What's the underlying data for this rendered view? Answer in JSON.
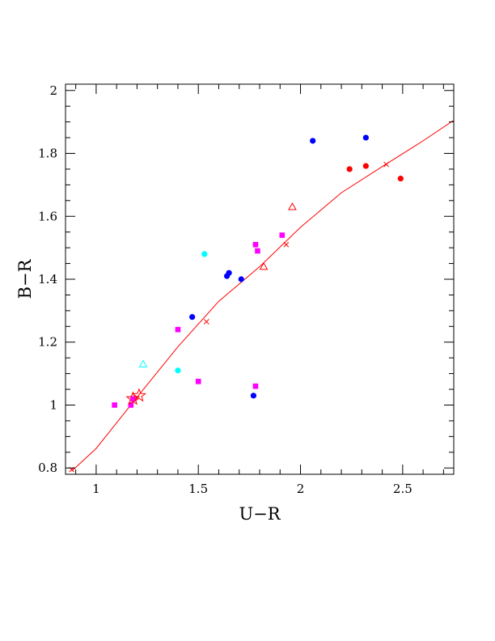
{
  "chart_data": {
    "type": "scatter",
    "title": "",
    "xlabel": "U−R",
    "ylabel": "B−R",
    "xlim": [
      0.85,
      2.75
    ],
    "ylim": [
      0.78,
      2.02
    ],
    "grid": false,
    "x_ticks": [
      1,
      1.5,
      2,
      2.5
    ],
    "x_tick_labels": [
      "1",
      "1.5",
      "2",
      "2.5"
    ],
    "y_ticks": [
      0.8,
      1,
      1.2,
      1.4,
      1.6,
      1.8,
      2
    ],
    "y_tick_labels": [
      "0.8",
      "1",
      "1.2",
      "1.4",
      "1.6",
      "1.8",
      "2"
    ],
    "colors": {
      "blue": "#0000ff",
      "red": "#ff0000",
      "magenta": "#ff00ff",
      "cyan": "#00ffff",
      "curve": "#ff0000",
      "axes": "#000000"
    },
    "series": [
      {
        "marker": "filled-circle",
        "color": "blue",
        "points": [
          [
            1.47,
            1.28
          ],
          [
            1.64,
            1.41
          ],
          [
            1.65,
            1.42
          ],
          [
            1.71,
            1.4
          ],
          [
            2.06,
            1.84
          ],
          [
            2.32,
            1.85
          ],
          [
            1.77,
            1.03
          ]
        ]
      },
      {
        "marker": "filled-circle",
        "color": "red",
        "points": [
          [
            2.24,
            1.75
          ],
          [
            2.32,
            1.76
          ],
          [
            2.49,
            1.72
          ]
        ]
      },
      {
        "marker": "filled-circle",
        "color": "cyan",
        "points": [
          [
            1.53,
            1.48
          ],
          [
            1.4,
            1.11
          ]
        ]
      },
      {
        "marker": "filled-square",
        "color": "magenta",
        "points": [
          [
            1.09,
            1.0
          ],
          [
            1.17,
            1.0
          ],
          [
            1.18,
            1.02
          ],
          [
            1.4,
            1.24
          ],
          [
            1.5,
            1.075
          ],
          [
            1.78,
            1.51
          ],
          [
            1.79,
            1.49
          ],
          [
            1.91,
            1.54
          ],
          [
            1.78,
            1.06
          ]
        ]
      },
      {
        "marker": "open-triangle",
        "color": "cyan",
        "points": [
          [
            1.23,
            1.13
          ]
        ]
      },
      {
        "marker": "open-triangle",
        "color": "red",
        "points": [
          [
            1.82,
            1.44
          ],
          [
            1.96,
            1.63
          ]
        ]
      },
      {
        "marker": "open-star",
        "color": "red",
        "points": [
          [
            1.18,
            1.02
          ],
          [
            1.21,
            1.03
          ]
        ]
      }
    ],
    "curve": {
      "color": "curve",
      "points": [
        [
          0.88,
          0.79
        ],
        [
          1.0,
          0.862
        ],
        [
          1.2,
          1.025
        ],
        [
          1.4,
          1.185
        ],
        [
          1.6,
          1.33
        ],
        [
          1.8,
          1.44
        ],
        [
          2.0,
          1.565
        ],
        [
          2.2,
          1.675
        ],
        [
          2.4,
          1.758
        ],
        [
          2.6,
          1.84
        ],
        [
          2.75,
          1.905
        ]
      ],
      "cross_markers": [
        [
          0.88,
          0.795
        ],
        [
          1.54,
          1.265
        ],
        [
          1.93,
          1.51
        ],
        [
          2.42,
          1.765
        ]
      ]
    }
  }
}
